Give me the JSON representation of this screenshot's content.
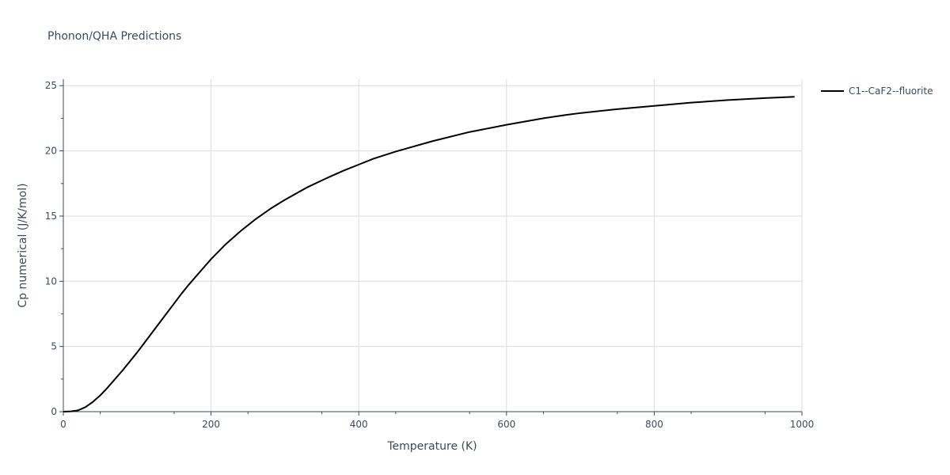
{
  "chart_data": {
    "type": "line",
    "title": "Phonon/QHA Predictions",
    "xlabel": "Temperature (K)",
    "ylabel": "Cp numerical (J/K/mol)",
    "xlim": [
      0,
      1000
    ],
    "ylim": [
      0,
      25.5
    ],
    "x_ticks": [
      0,
      200,
      400,
      600,
      800,
      1000
    ],
    "y_ticks": [
      0,
      5,
      10,
      15,
      20,
      25
    ],
    "grid": true,
    "legend_position": "top-right outside",
    "series": [
      {
        "name": "C1--CaF2--fluorite",
        "color": "#000000",
        "x": [
          0,
          10,
          20,
          30,
          40,
          50,
          60,
          70,
          80,
          90,
          100,
          110,
          120,
          130,
          140,
          150,
          160,
          170,
          180,
          190,
          200,
          220,
          240,
          260,
          280,
          300,
          330,
          360,
          380,
          400,
          420,
          450,
          500,
          550,
          600,
          650,
          680,
          700,
          750,
          800,
          850,
          900,
          950,
          990
        ],
        "y": [
          0,
          0.02,
          0.1,
          0.35,
          0.75,
          1.25,
          1.85,
          2.5,
          3.15,
          3.85,
          4.55,
          5.3,
          6.05,
          6.8,
          7.55,
          8.3,
          9.05,
          9.75,
          10.4,
          11.05,
          11.7,
          12.85,
          13.85,
          14.75,
          15.55,
          16.25,
          17.2,
          18.0,
          18.5,
          18.95,
          19.4,
          19.95,
          20.75,
          21.45,
          22.0,
          22.5,
          22.75,
          22.9,
          23.2,
          23.45,
          23.7,
          23.9,
          24.05,
          24.15
        ]
      }
    ]
  }
}
